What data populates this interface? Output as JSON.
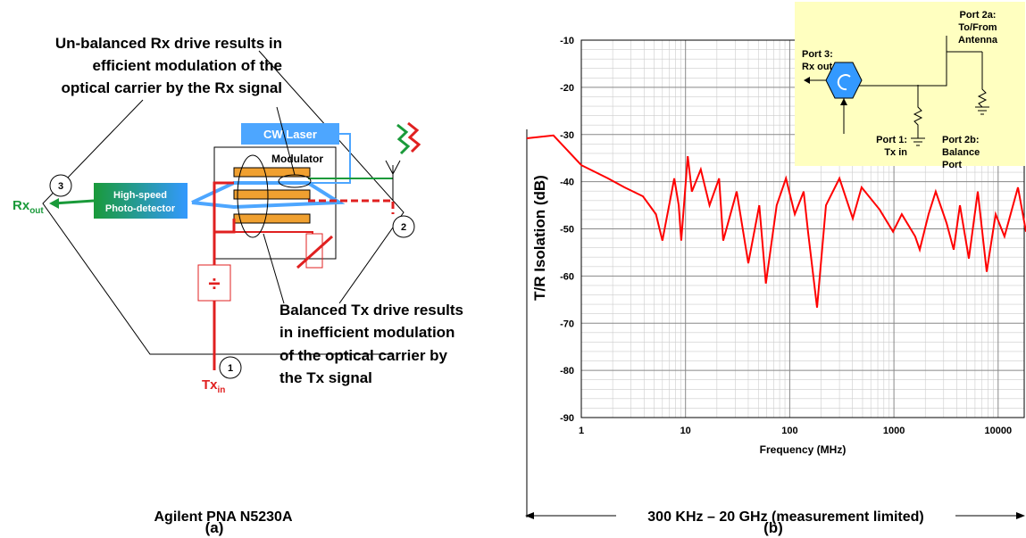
{
  "panel_a": {
    "callout_top": [
      "Un-balanced Rx drive results in",
      "efficient modulation of the",
      "optical carrier by the Rx signal"
    ],
    "callout_bottom": [
      "Balanced Tx drive results",
      "in inefficient modulation",
      "of the optical carrier by",
      "the Tx signal"
    ],
    "cw_laser": "CW Laser",
    "modulator": "Modulator",
    "photodetector": [
      "High-speed",
      "Photo-detector"
    ],
    "rx_label": {
      "main": "Rx",
      "sub": "out"
    },
    "tx_label": {
      "main": "Tx",
      "sub": "in"
    },
    "ports": [
      "3",
      "2",
      "1"
    ],
    "divider": "÷",
    "instrument": "Agilent PNA N5230A",
    "caption": "(a)"
  },
  "panel_b": {
    "range_note": "300 KHz – 20 GHz (measurement limited)",
    "caption": "(b)",
    "inset": {
      "port_2a": [
        "Port 2a:",
        "To/From",
        "Antenna"
      ],
      "port_3": [
        "Port 3:",
        "Rx out"
      ],
      "port_1": [
        "Port 1:",
        "Tx in"
      ],
      "port_2b": [
        "Port 2b:",
        "Balance",
        "Port"
      ]
    }
  },
  "chart_data": {
    "type": "line",
    "x_label": "Frequency (MHz)",
    "y_label": "T/R Isolation (dB)",
    "x": [
      0.3,
      0.54,
      1,
      1.8,
      2.6,
      3.9,
      5.2,
      6.0,
      7.8,
      8.6,
      9.1,
      10.5,
      11.5,
      14,
      17,
      21,
      23,
      31,
      40,
      51,
      59,
      75,
      92,
      112,
      136,
      150,
      183,
      223,
      300,
      403,
      490,
      728,
      980,
      1190,
      1600,
      1770,
      2150,
      2520,
      3200,
      3740,
      4300,
      5240,
      6380,
      7770,
      9460,
      11500,
      15500,
      18500
    ],
    "series": [
      {
        "color": "#ff0000",
        "values": [
          -30.8,
          -30.2,
          -36.5,
          -39.3,
          -41.2,
          -43.1,
          -46.9,
          -52.5,
          -39.3,
          -45,
          -52.5,
          -34.6,
          -42.1,
          -37.4,
          -45,
          -39.3,
          -52.5,
          -42.1,
          -57.3,
          -45,
          -61.6,
          -45,
          -39.3,
          -46.9,
          -42.1,
          -50.6,
          -66.7,
          -45,
          -39.3,
          -47.8,
          -41.2,
          -45.9,
          -50.6,
          -46.9,
          -51.6,
          -54.4,
          -46.9,
          -42.1,
          -48.8,
          -54.4,
          -45,
          -56.3,
          -42.1,
          -59.1,
          -46.9,
          -51.6,
          -41.2,
          -50.6
        ]
      }
    ],
    "xlim": [
      0.3,
      20000
    ],
    "ylim": [
      -90,
      -10
    ],
    "xticks": [
      1,
      10,
      100,
      1000,
      10000
    ],
    "yticks": [
      -90,
      -80,
      -70,
      -60,
      -50,
      -40,
      -30,
      -20,
      -10
    ],
    "xscale": "log",
    "grid": true
  }
}
